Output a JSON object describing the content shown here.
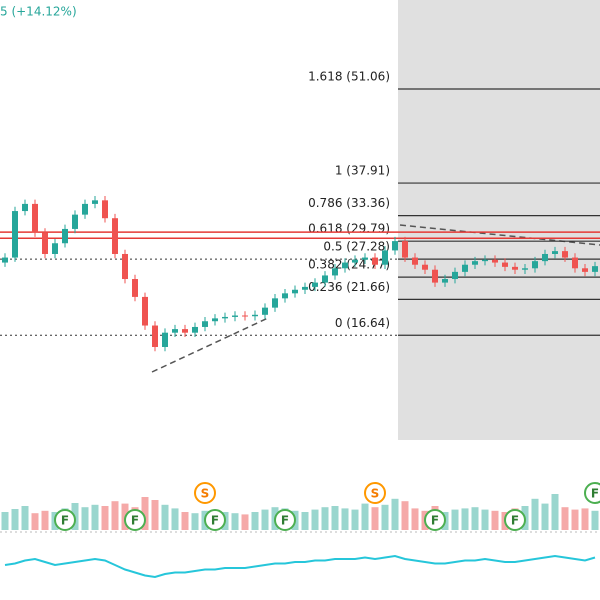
{
  "chart_data": {
    "type": "candlestick",
    "header": "5 (+14.12%)",
    "ylim": [
      2,
      63.5
    ],
    "open": [
      26.8,
      27.5,
      34,
      35,
      31,
      28,
      29.5,
      31.5,
      33.5,
      35,
      35.5,
      33,
      28,
      24.5,
      22,
      18,
      15,
      17,
      17.5,
      17,
      17.8,
      18.6,
      19,
      19.2,
      19.4,
      19.3,
      19.5,
      20.5,
      21.8,
      22.5,
      23,
      23.4,
      24,
      25,
      26,
      26.8,
      27.2,
      27.5,
      26.5,
      28.5,
      29.8,
      27.5,
      26.5,
      25.8,
      24,
      24.5,
      25.5,
      26.5,
      27,
      27.2,
      26.8,
      26.2,
      25.8,
      26,
      27,
      28,
      28.4,
      27.5,
      26,
      25.5
    ],
    "high": [
      28.1,
      34.6,
      35.6,
      35.6,
      31.6,
      30.1,
      32.1,
      34.1,
      35.6,
      36.1,
      36.1,
      33.6,
      28.6,
      25.1,
      22.6,
      18.6,
      17.6,
      18.1,
      18.1,
      18.4,
      19.2,
      19.6,
      19.8,
      20,
      20,
      20.1,
      21.1,
      22.4,
      23.1,
      23.6,
      24,
      24.6,
      25.6,
      26.6,
      27.4,
      27.8,
      28.1,
      28.1,
      29.1,
      30.4,
      30.4,
      28.1,
      27.1,
      26.4,
      25.1,
      26.1,
      27.1,
      27.6,
      27.8,
      27.8,
      27.4,
      26.8,
      26.6,
      27.6,
      28.6,
      29,
      29,
      28.1,
      26.6,
      26.9
    ],
    "low": [
      26.2,
      26.9,
      33.4,
      30.4,
      27.4,
      27.4,
      28.9,
      30.9,
      32.9,
      34.4,
      32.4,
      27.4,
      23.9,
      21.4,
      17.4,
      14.4,
      14.4,
      16.4,
      16.4,
      16.4,
      17.2,
      18,
      18.4,
      18.6,
      18.7,
      18.7,
      18.9,
      19.9,
      21.2,
      21.9,
      22.4,
      22.8,
      23.4,
      24.4,
      25.4,
      26.2,
      26.6,
      25.9,
      25.9,
      27.9,
      26.9,
      25.9,
      25.2,
      23.4,
      23.4,
      23.9,
      24.9,
      25.9,
      26.4,
      26.2,
      25.6,
      25.2,
      25.2,
      25.4,
      26.4,
      27.4,
      26.9,
      25.4,
      24.9,
      24.9
    ],
    "close": [
      27.5,
      34,
      35,
      31,
      28,
      29.5,
      31.5,
      33.5,
      35,
      35.5,
      33,
      28,
      24.5,
      22,
      18,
      15,
      17,
      17.5,
      17,
      17.8,
      18.6,
      19,
      19.2,
      19.4,
      19.3,
      19.5,
      20.5,
      21.8,
      22.5,
      23,
      23.4,
      24,
      25,
      26,
      26.8,
      27.2,
      27.5,
      26.5,
      28.5,
      29.8,
      27.5,
      26.5,
      25.8,
      24,
      24.5,
      25.5,
      26.5,
      27,
      27.2,
      26.8,
      26.2,
      25.8,
      26,
      27,
      28,
      28.4,
      27.5,
      26,
      25.5,
      26.3
    ],
    "up_color": "#26a69a",
    "down_color": "#ef5350",
    "fib_levels": [
      {
        "value": 51.06,
        "label": "1.618 (51.06)"
      },
      {
        "value": 37.91,
        "label": "1 (37.91)"
      },
      {
        "value": 33.36,
        "label": "0.786 (33.36)"
      },
      {
        "value": 29.79,
        "label": "0.618 (29.79)"
      },
      {
        "value": 27.28,
        "label": "0.5 (27.28)"
      },
      {
        "value": 24.77,
        "label": "0.382 (24.77)"
      },
      {
        "value": 21.66,
        "label": "0.236 (21.66)"
      },
      {
        "value": 16.64,
        "label": "0 (16.64)"
      }
    ],
    "resistance": [
      31.05,
      30.2
    ],
    "resistance_color": "#e53935",
    "volume": {
      "ylim": [
        0,
        100
      ],
      "values": [
        30,
        35,
        40,
        28,
        32,
        30,
        36,
        45,
        38,
        42,
        40,
        48,
        44,
        38,
        55,
        50,
        42,
        36,
        30,
        28,
        32,
        34,
        30,
        28,
        26,
        30,
        34,
        38,
        36,
        32,
        30,
        34,
        38,
        40,
        36,
        34,
        44,
        38,
        42,
        52,
        48,
        36,
        32,
        40,
        30,
        34,
        36,
        38,
        34,
        32,
        30,
        36,
        40,
        52,
        44,
        60,
        38,
        34,
        36,
        32
      ]
    },
    "markers": [
      {
        "label": "F",
        "index": 6
      },
      {
        "label": "F",
        "index": 13
      },
      {
        "label": "S",
        "index": 20
      },
      {
        "label": "F",
        "index": 21
      },
      {
        "label": "F",
        "index": 28
      },
      {
        "label": "S",
        "index": 37
      },
      {
        "label": "F",
        "index": 43
      },
      {
        "label": "F",
        "index": 51
      },
      {
        "label": "F",
        "index": 59
      }
    ],
    "oscillator": {
      "ylim": [
        30,
        70
      ],
      "color": "#26c6da",
      "values": [
        50,
        51,
        53,
        54,
        52,
        50,
        51,
        52,
        53,
        54,
        53,
        50,
        47,
        45,
        43,
        42,
        44,
        45,
        45,
        46,
        47,
        47,
        48,
        48,
        48,
        49,
        50,
        51,
        51,
        52,
        52,
        53,
        53,
        54,
        54,
        54,
        55,
        54,
        55,
        56,
        54,
        53,
        52,
        51,
        51,
        52,
        53,
        53,
        54,
        53,
        52,
        52,
        53,
        54,
        55,
        56,
        55,
        54,
        53,
        55
      ]
    }
  }
}
